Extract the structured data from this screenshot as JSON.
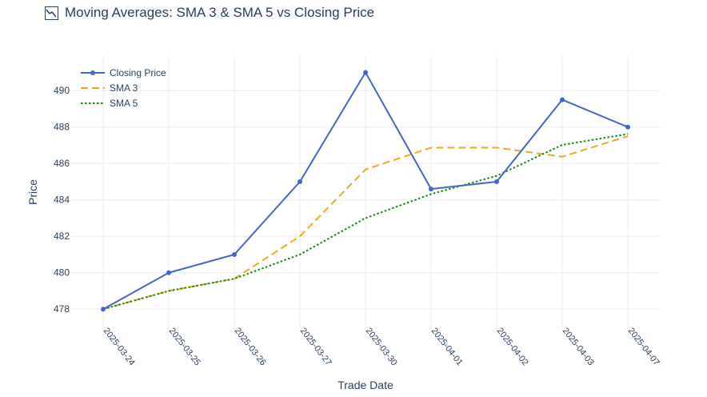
{
  "chart_data": {
    "type": "line",
    "title": "Moving Averages: SMA 3 & SMA 5 vs Closing Price",
    "xlabel": "Trade Date",
    "ylabel": "Price",
    "categories": [
      "2025-03-24",
      "2025-03-25",
      "2025-03-26",
      "2025-03-27",
      "2025-03-30",
      "2025-04-01",
      "2025-04-02",
      "2025-04-03",
      "2025-04-07"
    ],
    "yticks": [
      "478",
      "480",
      "482",
      "484",
      "486",
      "488",
      "490"
    ],
    "ytick_values": [
      478,
      480,
      482,
      484,
      486,
      488,
      490
    ],
    "ylim": [
      477,
      491.9
    ],
    "grid": true,
    "legend_position": "top-left",
    "series": [
      {
        "name": "Closing Price",
        "values": [
          478,
          480,
          481,
          485,
          491,
          484.6,
          485,
          489.5,
          488
        ],
        "color": "#4466cc",
        "style": "solid",
        "markers": true
      },
      {
        "name": "SMA 3",
        "values": [
          478,
          479,
          479.67,
          482,
          485.67,
          486.87,
          486.87,
          486.37,
          487.5
        ],
        "color": "#f2a81d",
        "style": "dashed",
        "markers": false
      },
      {
        "name": "SMA 5",
        "values": [
          478,
          479,
          479.67,
          481,
          483,
          484.32,
          485.32,
          487.02,
          487.62
        ],
        "color": "#138a10",
        "style": "dotted",
        "markers": false
      }
    ]
  }
}
